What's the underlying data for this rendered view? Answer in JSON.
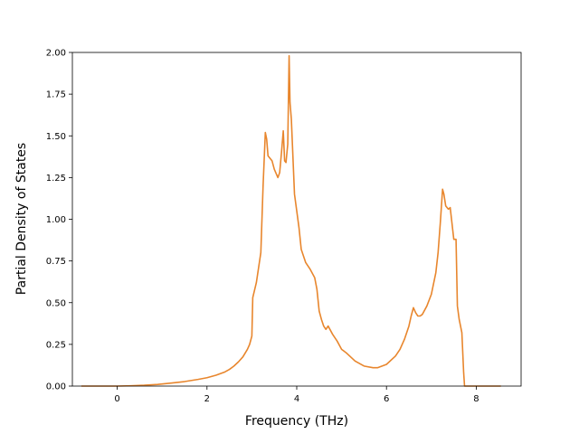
{
  "chart_data": {
    "type": "line",
    "title": "",
    "xlabel": "Frequency (THz)",
    "ylabel": "Partial Density of States",
    "xlim": [
      -1.0,
      9.0
    ],
    "ylim": [
      0.0,
      2.0
    ],
    "xticks": [
      0,
      2,
      4,
      6,
      8
    ],
    "xtick_labels": [
      "0",
      "2",
      "4",
      "6",
      "8"
    ],
    "yticks": [
      0.0,
      0.25,
      0.5,
      0.75,
      1.0,
      1.25,
      1.5,
      1.75,
      2.0
    ],
    "ytick_labels": [
      "0.00",
      "0.25",
      "0.50",
      "0.75",
      "1.00",
      "1.25",
      "1.50",
      "1.75",
      "2.00"
    ],
    "grid": false,
    "colors": {
      "series": "#e8862d",
      "axes": "#000000"
    },
    "series": [
      {
        "x": [
          -0.8,
          -0.4,
          0.0,
          0.3,
          0.6,
          0.9,
          1.2,
          1.5,
          1.8,
          2.0,
          2.2,
          2.4,
          2.5,
          2.6,
          2.7,
          2.8,
          2.9,
          2.95,
          3.0,
          3.02,
          3.1,
          3.2,
          3.25,
          3.3,
          3.33,
          3.36,
          3.45,
          3.5,
          3.58,
          3.62,
          3.66,
          3.7,
          3.73,
          3.76,
          3.8,
          3.83,
          3.85,
          3.88,
          3.95,
          4.0,
          4.05,
          4.1,
          4.2,
          4.3,
          4.4,
          4.45,
          4.5,
          4.55,
          4.6,
          4.65,
          4.7,
          4.8,
          4.9,
          5.0,
          5.1,
          5.3,
          5.5,
          5.7,
          5.8,
          6.0,
          6.2,
          6.3,
          6.4,
          6.5,
          6.55,
          6.6,
          6.65,
          6.7,
          6.75,
          6.8,
          6.9,
          7.0,
          7.1,
          7.15,
          7.2,
          7.25,
          7.28,
          7.32,
          7.38,
          7.42,
          7.5,
          7.55,
          7.58,
          7.62,
          7.68,
          7.72,
          7.74,
          7.8,
          8.0,
          8.3,
          8.55
        ],
        "y": [
          0.0,
          0.0,
          0.0,
          0.002,
          0.005,
          0.01,
          0.018,
          0.027,
          0.04,
          0.05,
          0.065,
          0.085,
          0.1,
          0.12,
          0.145,
          0.175,
          0.22,
          0.25,
          0.3,
          0.53,
          0.62,
          0.8,
          1.2,
          1.52,
          1.48,
          1.38,
          1.35,
          1.3,
          1.25,
          1.28,
          1.4,
          1.53,
          1.35,
          1.34,
          1.45,
          1.98,
          1.7,
          1.6,
          1.15,
          1.05,
          0.95,
          0.82,
          0.74,
          0.7,
          0.65,
          0.58,
          0.45,
          0.4,
          0.36,
          0.34,
          0.36,
          0.31,
          0.27,
          0.22,
          0.2,
          0.15,
          0.12,
          0.11,
          0.11,
          0.13,
          0.18,
          0.22,
          0.28,
          0.36,
          0.42,
          0.47,
          0.44,
          0.42,
          0.42,
          0.43,
          0.48,
          0.55,
          0.68,
          0.8,
          0.98,
          1.18,
          1.15,
          1.08,
          1.06,
          1.07,
          0.88,
          0.88,
          0.48,
          0.4,
          0.32,
          0.08,
          0.0,
          0.0,
          0.0,
          0.0,
          0.0
        ]
      }
    ]
  }
}
